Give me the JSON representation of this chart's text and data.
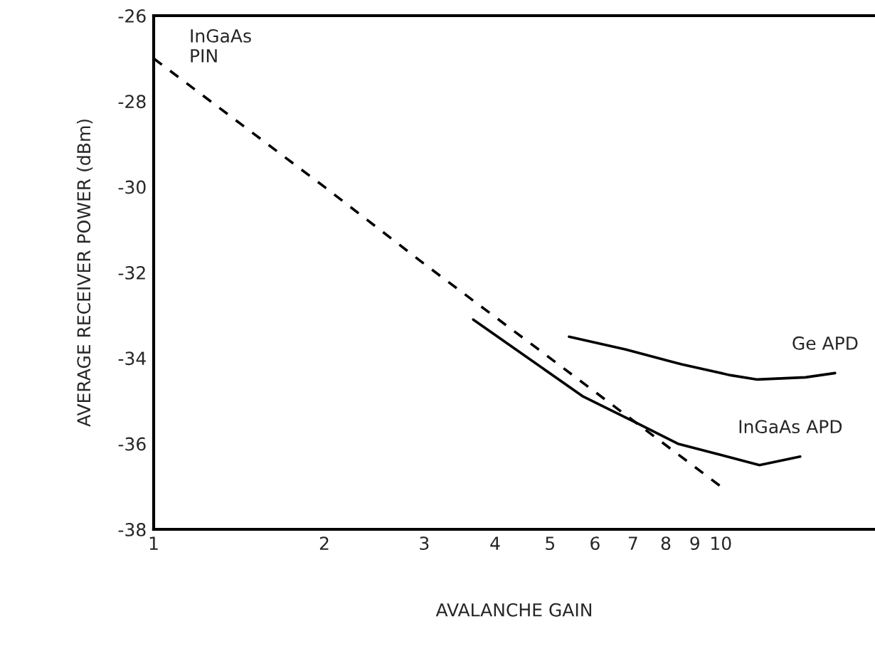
{
  "chart_data": {
    "type": "line",
    "xlabel": "AVALANCHE GAIN",
    "ylabel": "AVERAGE RECEIVER POWER (dBm)",
    "log": "x",
    "xlim": [
      1,
      18.7
    ],
    "xticks": [
      1,
      2,
      3,
      4,
      5,
      6,
      7,
      8,
      9,
      10
    ],
    "ylim": [
      -38,
      -26
    ],
    "yticks": [
      -38,
      -36,
      -34,
      -32,
      -30,
      -28,
      -26
    ],
    "grid": false,
    "legend": false,
    "marker": "none",
    "series": [
      {
        "name": "InGaAs\nPIN",
        "color": "#000000",
        "line_style": "dashed",
        "x": [
          1,
          2,
          3,
          5,
          10
        ],
        "values": [
          -27,
          -30,
          -31.8,
          -34,
          -37
        ]
      },
      {
        "name": "InGaAs APD",
        "color": "#000000",
        "line_style": "solid",
        "x": [
          3.66,
          5.72,
          7.07,
          8.4,
          9.6,
          11.7,
          13.8
        ],
        "values": [
          -33.1,
          -34.9,
          -35.5,
          -36.0,
          -36.2,
          -36.5,
          -36.3
        ]
      },
      {
        "name": "Ge APD",
        "color": "#000000",
        "line_style": "solid",
        "x": [
          5.4,
          6.8,
          8.55,
          10.4,
          11.6,
          14.1,
          15.9
        ],
        "values": [
          -33.5,
          -33.8,
          -34.15,
          -34.4,
          -34.5,
          -34.45,
          -34.35
        ]
      }
    ]
  }
}
